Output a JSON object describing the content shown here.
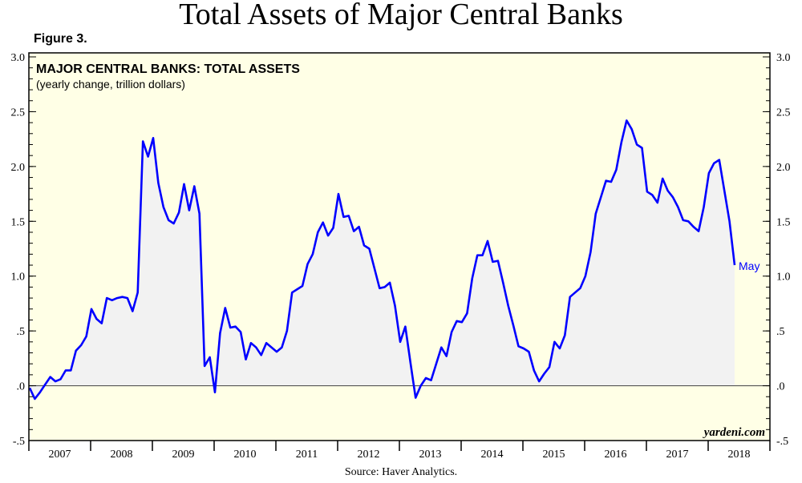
{
  "page": {
    "title": "Total Assets of Major Central Banks",
    "figure_label": "Figure 3.",
    "source": "Source: Haver Analytics.",
    "watermark": "yardeni.com"
  },
  "colors": {
    "line": "#0000ff",
    "fill": "#f2f2f2",
    "plot_bg": "#ffffe6",
    "zero_line": "#555555"
  },
  "chart_data": {
    "type": "area",
    "title": "MAJOR CENTRAL BANKS: TOTAL ASSETS",
    "subtitle": "(yearly change, trillion dollars)",
    "xlabel": "",
    "ylabel": "",
    "x_start": "2007-01",
    "x_end": "2018-05",
    "frequency": "monthly",
    "ylim": [
      -0.5,
      3.0
    ],
    "yticks": [
      3.0,
      2.5,
      2.0,
      1.5,
      1.0,
      0.5,
      0.0,
      -0.5
    ],
    "ytick_labels": [
      "3.0",
      "2.5",
      "2.0",
      "1.5",
      "1.0",
      ".5",
      ".0",
      "-.5"
    ],
    "xtick_labels": [
      "2007",
      "2008",
      "2009",
      "2010",
      "2011",
      "2012",
      "2013",
      "2014",
      "2015",
      "2016",
      "2017",
      "2018"
    ],
    "annotation": "May",
    "grid": false,
    "series": [
      {
        "name": "Major central banks total assets, yearly change",
        "values": [
          -0.02,
          -0.12,
          -0.06,
          0.01,
          0.08,
          0.04,
          0.06,
          0.14,
          0.14,
          0.32,
          0.37,
          0.45,
          0.7,
          0.61,
          0.57,
          0.8,
          0.78,
          0.8,
          0.81,
          0.8,
          0.68,
          0.85,
          2.23,
          2.09,
          2.26,
          1.85,
          1.63,
          1.51,
          1.48,
          1.58,
          1.84,
          1.6,
          1.82,
          1.57,
          0.18,
          0.26,
          -0.06,
          0.48,
          0.71,
          0.53,
          0.54,
          0.49,
          0.24,
          0.39,
          0.35,
          0.28,
          0.39,
          0.35,
          0.31,
          0.35,
          0.5,
          0.85,
          0.88,
          0.91,
          1.11,
          1.2,
          1.4,
          1.49,
          1.37,
          1.44,
          1.75,
          1.54,
          1.55,
          1.41,
          1.45,
          1.28,
          1.25,
          1.07,
          0.89,
          0.9,
          0.94,
          0.73,
          0.4,
          0.54,
          0.21,
          -0.11,
          0.0,
          0.07,
          0.05,
          0.2,
          0.35,
          0.27,
          0.49,
          0.59,
          0.58,
          0.66,
          0.98,
          1.19,
          1.19,
          1.32,
          1.13,
          1.14,
          0.94,
          0.73,
          0.55,
          0.36,
          0.34,
          0.31,
          0.14,
          0.04,
          0.11,
          0.17,
          0.4,
          0.34,
          0.46,
          0.81,
          0.85,
          0.89,
          1.0,
          1.22,
          1.57,
          1.72,
          1.87,
          1.86,
          1.97,
          2.22,
          2.42,
          2.34,
          2.2,
          2.17,
          1.77,
          1.74,
          1.67,
          1.89,
          1.78,
          1.72,
          1.63,
          1.51,
          1.5,
          1.45,
          1.41,
          1.63,
          1.94,
          2.03,
          2.06,
          1.78,
          1.5,
          1.1
        ]
      }
    ]
  }
}
